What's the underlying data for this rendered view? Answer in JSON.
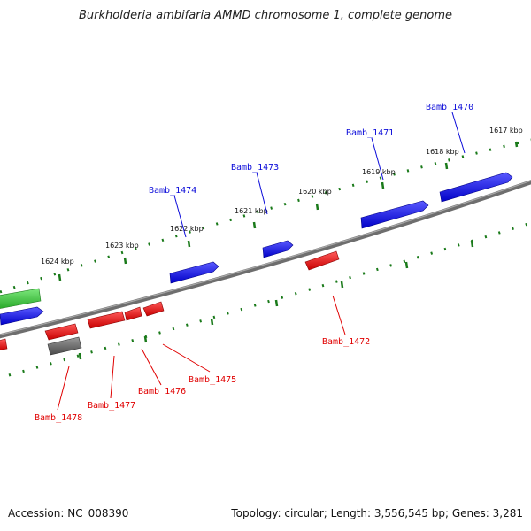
{
  "title": "Burkholderia ambifaria AMMD chromosome 1, complete genome",
  "footer": {
    "accession": "Accession: NC_008390",
    "summary": "Topology: circular; Length: 3,556,545 bp; Genes: 3,281"
  },
  "ticks_upper": [
    "1617 kbp",
    "1618 kbp",
    "1619 kbp",
    "1620 kbp",
    "1621 kbp",
    "1622 kbp",
    "1623 kbp",
    "1624 kbp"
  ],
  "genes_blue": [
    "Bamb_1470",
    "Bamb_1471",
    "Bamb_1473",
    "Bamb_1474"
  ],
  "genes_red": [
    "Bamb_1472",
    "Bamb_1475",
    "Bamb_1476",
    "Bamb_1477",
    "Bamb_1478"
  ],
  "colors": {
    "forward": "#0b0bd9",
    "reverse": "#e00000",
    "rna": "#3cc83c",
    "other": "#606060",
    "backbone": "#7a7a7a",
    "ticks": "#1a7a1a"
  }
}
